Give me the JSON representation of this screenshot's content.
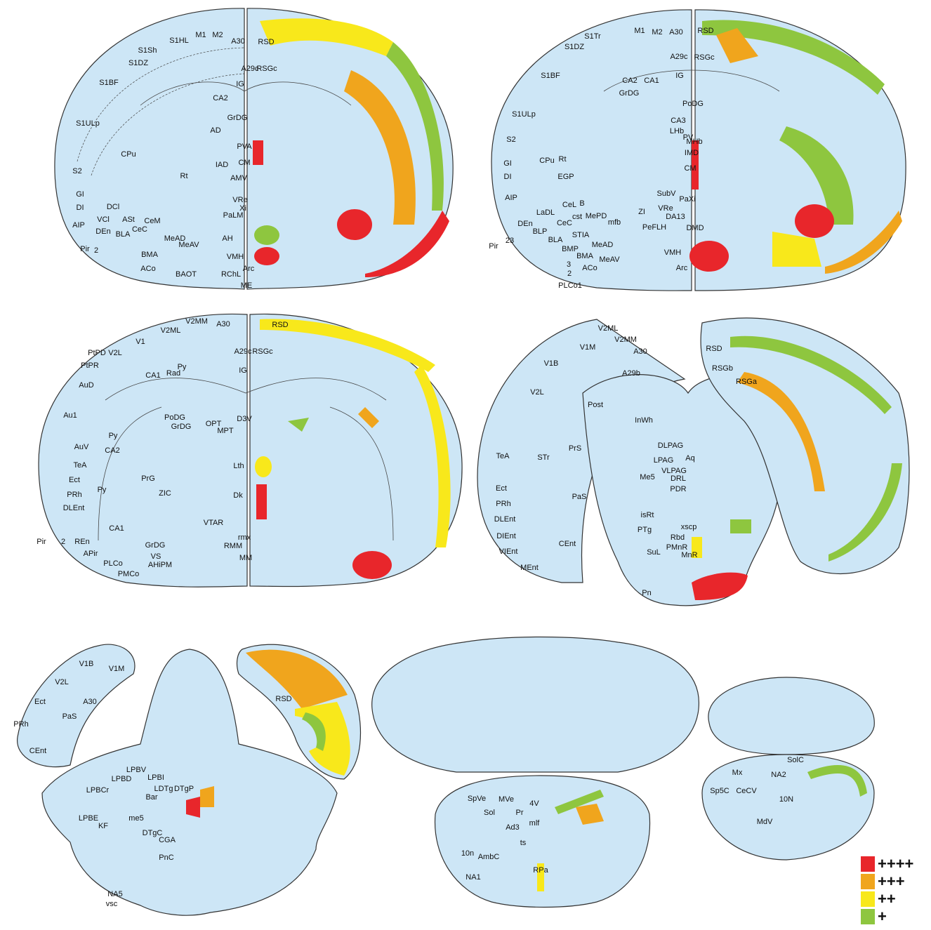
{
  "sections": [
    {
      "labels": [
        "S1HL",
        "M1",
        "M2",
        "A30",
        "RSD",
        "S1Sh",
        "S1DZ",
        "A29c",
        "RSGc",
        "S1BF",
        "IG",
        "CA2",
        "GrDG",
        "S1ULp",
        "AD",
        "PVA",
        "CPu",
        "CM",
        "IAD",
        "S2",
        "Rt",
        "AMV",
        "GI",
        "DI",
        "DCl",
        "VRe",
        "Xi",
        "PaLM",
        "AIP",
        "VCl",
        "ASt",
        "CeM",
        "DEn",
        "CeC",
        "BLA",
        "AH",
        "MeAD",
        "MeAV",
        "Pir",
        "2",
        "BMA",
        "VMH",
        "Arc",
        "ACo",
        "RChL",
        "BAOT",
        "ME"
      ]
    },
    {
      "labels": [
        "S1Tr",
        "M1",
        "M2",
        "A30",
        "RSD",
        "S1DZ",
        "A29c",
        "RSGc",
        "S1BF",
        "IG",
        "CA2",
        "CA1",
        "GrDG",
        "PoDG",
        "S1ULp",
        "CA3",
        "LHb",
        "PV",
        "MHb",
        "IMD",
        "S2",
        "CPu",
        "Rt",
        "GI",
        "DI",
        "CM",
        "EGP",
        "SubV",
        "AIP",
        "LaDL",
        "CeL",
        "B",
        "ZI",
        "PaXi",
        "VRe",
        "DA13",
        "cst",
        "MePD",
        "DEn",
        "CeC",
        "mfb",
        "PeFLH",
        "DMD",
        "BLP",
        "STIA",
        "BLA",
        "MeAD",
        "VMH",
        "BMP",
        "Pir",
        "23",
        "BMA",
        "MeAV",
        "3",
        "2",
        "ACo",
        "Arc",
        "PLCo1"
      ]
    },
    {
      "labels": [
        "V2MM",
        "A30",
        "RSD",
        "V1",
        "V2ML",
        "PtPD",
        "V2L",
        "A29c",
        "RSGc",
        "IG",
        "Py",
        "Rad",
        "PtPR",
        "CA1",
        "AuD",
        "PoDG",
        "GrDG",
        "D3V",
        "OPT",
        "MPT",
        "Au1",
        "Py",
        "CA2",
        "AuV",
        "Lth",
        "TeA",
        "PrG",
        "Ect",
        "Dk",
        "ZIC",
        "Py",
        "PRh",
        "DLEnt",
        "VTAR",
        "CA1",
        "rmx",
        "Pir",
        "2",
        "REn",
        "RMM",
        "GrDG",
        "APir",
        "MM",
        "VS",
        "AHiPM",
        "PLCo",
        "PMCo"
      ]
    },
    {
      "labels": [
        "V2ML",
        "V2MM",
        "V1M",
        "A30",
        "RSD",
        "V1B",
        "A29b",
        "RSGb",
        "RSGa",
        "V2L",
        "Post",
        "InWh",
        "TeA",
        "PrS",
        "DLPAG",
        "Aq",
        "STr",
        "LPAG",
        "VLPAG",
        "Me5",
        "DRL",
        "PDR",
        "Ect",
        "PRh",
        "PaS",
        "DLEnt",
        "isRt",
        "DIEnt",
        "PTg",
        "xscp",
        "VIEnt",
        "Rbd",
        "SuL",
        "PMnR",
        "CEnt",
        "MnR",
        "MEnt",
        "Pn"
      ]
    },
    {
      "labels": [
        "V1B",
        "V1M",
        "V2L",
        "A30",
        "Ect",
        "PaS",
        "PRh",
        "RSD",
        "CEnt",
        "LPBV",
        "LPBI",
        "LPBD",
        "LDTg",
        "DTgP",
        "LPBCr",
        "Bar",
        "LPBE",
        "me5",
        "KF",
        "DTgC",
        "CGA",
        "PnC",
        "NA5",
        "vsc"
      ]
    },
    {
      "labels": [
        "SpVe",
        "MVe",
        "4V",
        "Sol",
        "Pr",
        "mlf",
        "Ad3",
        "ts",
        "10n",
        "AmbC",
        "RPa",
        "NA1"
      ]
    },
    {
      "labels": [
        "SolC",
        "Mx",
        "NA2",
        "Sp5C",
        "CeCV",
        "10N",
        "MdV"
      ]
    }
  ],
  "legend": [
    {
      "label": "++++",
      "color": "#e8262b"
    },
    {
      "label": "+++",
      "color": "#f0a51d"
    },
    {
      "label": "++",
      "color": "#f8e81b"
    },
    {
      "label": "+",
      "color": "#8ec63f"
    }
  ]
}
